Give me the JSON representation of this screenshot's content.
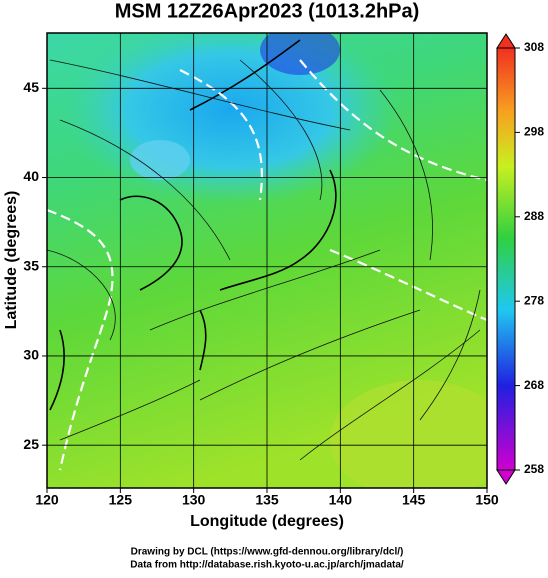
{
  "chart_data": {
    "type": "map",
    "title": "MSM 12Z26Apr2023 (1013.2hPa)",
    "x_label": "Longitude (degrees)",
    "y_label": "Latitude  (degrees)",
    "xlim": [
      120,
      150
    ],
    "xticks": [
      120,
      125,
      130,
      135,
      140,
      145,
      150
    ],
    "ylim": [
      22.6,
      48.1
    ],
    "yticks": [
      25,
      30,
      35,
      40,
      45
    ],
    "grid": true,
    "clim": [
      258,
      308
    ],
    "cticks": [
      258,
      268,
      278,
      288,
      298,
      308
    ],
    "footer": [
      "Drawing by DCL (https://www.gfd-dennou.org/library/dcl/)",
      "Data from http://database.rish.kyoto-u.ac.jp/arch/jmadata/"
    ]
  }
}
